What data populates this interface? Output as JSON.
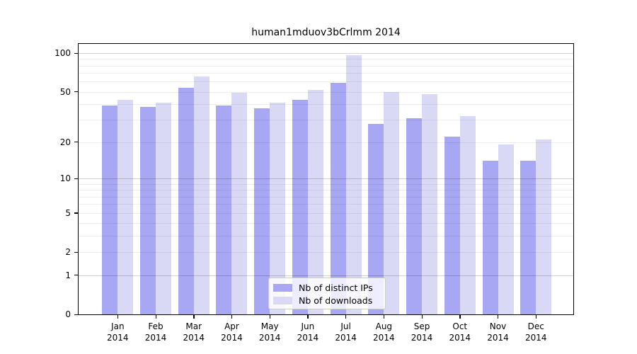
{
  "chart_data": {
    "type": "bar",
    "title": "human1mduov3bCrlmm 2014",
    "categories": [
      "Jan",
      "Feb",
      "Mar",
      "Apr",
      "May",
      "Jun",
      "Jul",
      "Aug",
      "Sep",
      "Oct",
      "Nov",
      "Dec"
    ],
    "x_year": "2014",
    "series": [
      {
        "name": "Nb of distinct IPs",
        "color": "#a7a7f3",
        "values": [
          39,
          38,
          54,
          39,
          37,
          43,
          59,
          28,
          31,
          22,
          14,
          14
        ]
      },
      {
        "name": "Nb of downloads",
        "color": "#d9d9f6",
        "values": [
          43,
          41,
          66,
          49,
          41,
          52,
          96,
          50,
          48,
          32,
          19,
          21
        ]
      }
    ],
    "y_axis": {
      "scale": "log1p",
      "ticks": [
        0,
        1,
        2,
        5,
        10,
        20,
        50,
        100
      ],
      "gridlines_major": [
        1,
        10,
        100
      ],
      "gridlines_minor": [
        2,
        3,
        4,
        5,
        6,
        7,
        8,
        9,
        20,
        30,
        40,
        50,
        60,
        70,
        80,
        90
      ],
      "lim": [
        0,
        118
      ]
    },
    "grid": true,
    "legend": {
      "position": "lower center"
    },
    "colors": {
      "background": "#ffffff",
      "axis": "#000000",
      "grid_minor": "#ededed",
      "grid_major": "#c9c9c9"
    }
  }
}
